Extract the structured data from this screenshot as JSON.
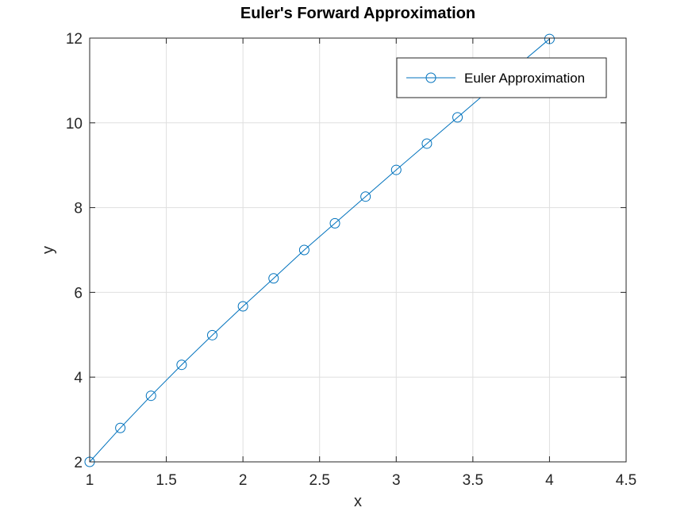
{
  "chart_data": {
    "type": "line",
    "title": "Euler's Forward Approximation",
    "xlabel": "x",
    "ylabel": "y",
    "xlim": [
      1,
      4.5
    ],
    "ylim": [
      2,
      12
    ],
    "xticks": [
      1,
      1.5,
      2,
      2.5,
      3,
      3.5,
      4,
      4.5
    ],
    "xtick_labels": [
      "1",
      "1.5",
      "2",
      "2.5",
      "3",
      "3.5",
      "4",
      "4.5"
    ],
    "yticks": [
      2,
      4,
      6,
      8,
      10,
      12
    ],
    "ytick_labels": [
      "2",
      "4",
      "6",
      "8",
      "10",
      "12"
    ],
    "grid": true,
    "legend_position": "top-right",
    "series": [
      {
        "name": "Euler Approximation",
        "color": "#0072BD",
        "marker": "circle",
        "x": [
          1,
          1.2,
          1.4,
          1.6,
          1.8,
          2,
          2.2,
          2.4,
          2.6,
          2.8,
          3,
          3.2,
          3.4,
          3.6,
          3.8,
          4
        ],
        "y": [
          2,
          2.8,
          3.56,
          4.29,
          4.99,
          5.67,
          6.33,
          7.0,
          7.63,
          8.26,
          8.89,
          9.51,
          10.13,
          10.75,
          11.37,
          11.98
        ]
      }
    ]
  }
}
